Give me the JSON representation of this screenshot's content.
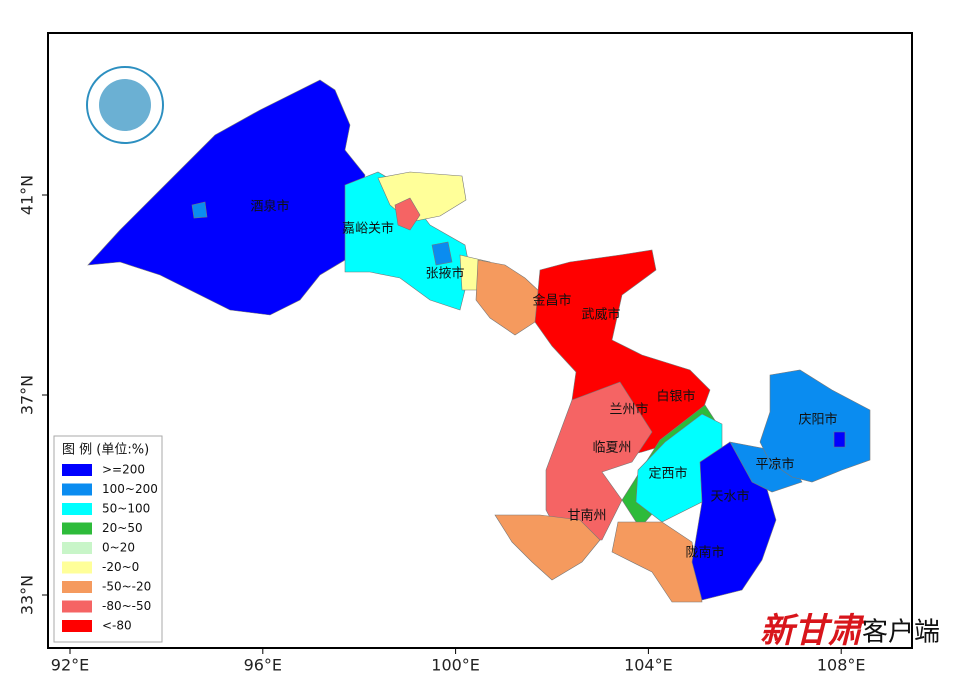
{
  "map": {
    "axes": {
      "xticks": [
        {
          "value": 92,
          "label": "92°E"
        },
        {
          "value": 96,
          "label": "96°E"
        },
        {
          "value": 100,
          "label": "100°E"
        },
        {
          "value": 104,
          "label": "104°E"
        },
        {
          "value": 108,
          "label": "108°E"
        }
      ],
      "yticks": [
        {
          "value": 41,
          "label": "41°N"
        },
        {
          "value": 37,
          "label": "37°N"
        },
        {
          "value": 33,
          "label": "33°N"
        }
      ]
    },
    "cities": [
      "酒泉市",
      "嘉峪关市",
      "张掖市",
      "金昌市",
      "武威市",
      "白银市",
      "兰州市",
      "临夏州",
      "定西市",
      "庆阳市",
      "平凉市",
      "天水市",
      "甘南州",
      "陇南市"
    ],
    "legend": {
      "title": "图 例 (单位:%)",
      "items": [
        {
          "label": ">=200",
          "color": "#0000ff"
        },
        {
          "label": "100~200",
          "color": "#0a8cf0"
        },
        {
          "label": "50~100",
          "color": "#00ffff"
        },
        {
          "label": "20~50",
          "color": "#2dbb3a"
        },
        {
          "label": "0~20",
          "color": "#c8f5c8"
        },
        {
          "label": "-20~0",
          "color": "#ffff99"
        },
        {
          "label": "-50~-20",
          "color": "#f59a5e"
        },
        {
          "label": "-80~-50",
          "color": "#f56464"
        },
        {
          "label": "<-80",
          "color": "#ff0000"
        }
      ]
    },
    "watermark": {
      "brand": "新甘肃",
      "suffix": "客户端"
    }
  }
}
